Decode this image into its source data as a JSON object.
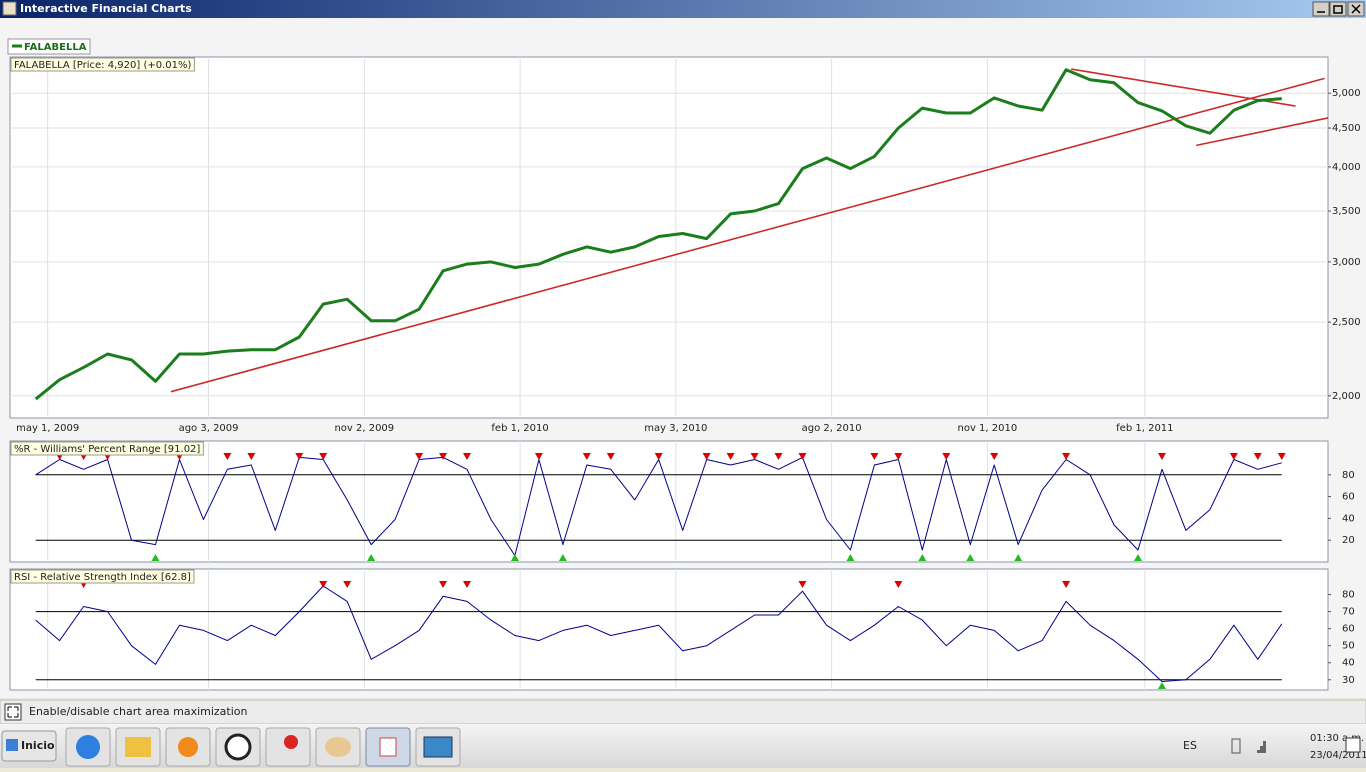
{
  "window": {
    "title": "Interactive Financial Charts"
  },
  "statusbar": {
    "text": "Enable/disable chart area maximization"
  },
  "taskbar": {
    "start": "Inicio",
    "language": "ES",
    "time": "01:30 a.m.",
    "date": "23/04/2011"
  },
  "chart_data": [
    {
      "type": "line",
      "title": "FALABELLA [Price: 4,920] (+0.01%)",
      "log": true,
      "grid": true,
      "x": [
        "2009-04-24",
        "2009-05-08",
        "2009-05-22",
        "2009-06-05",
        "2009-06-19",
        "2009-07-03",
        "2009-07-17",
        "2009-07-31",
        "2009-08-14",
        "2009-08-28",
        "2009-09-11",
        "2009-09-25",
        "2009-10-09",
        "2009-10-23",
        "2009-11-06",
        "2009-11-20",
        "2009-12-04",
        "2009-12-18",
        "2010-01-01",
        "2010-01-15",
        "2010-01-29",
        "2010-02-12",
        "2010-02-26",
        "2010-03-12",
        "2010-03-26",
        "2010-04-09",
        "2010-04-23",
        "2010-05-07",
        "2010-05-21",
        "2010-06-04",
        "2010-06-18",
        "2010-07-02",
        "2010-07-16",
        "2010-07-30",
        "2010-08-13",
        "2010-08-27",
        "2010-09-10",
        "2010-09-24",
        "2010-10-08",
        "2010-10-22",
        "2010-11-05",
        "2010-11-19",
        "2010-12-03",
        "2010-12-17",
        "2010-12-31",
        "2011-01-14",
        "2011-01-28",
        "2011-02-11",
        "2011-02-25",
        "2011-03-11",
        "2011-03-25",
        "2011-04-08",
        "2011-04-22"
      ],
      "series": [
        {
          "name": "FALABELLA",
          "color": "#1b7d1b",
          "values": [
            1980,
            2100,
            2180,
            2270,
            2230,
            2090,
            2270,
            2270,
            2290,
            2300,
            2300,
            2390,
            2640,
            2680,
            2510,
            2510,
            2600,
            2920,
            2980,
            3000,
            2950,
            2980,
            3070,
            3140,
            3090,
            3140,
            3240,
            3270,
            3220,
            3470,
            3500,
            3580,
            3980,
            4110,
            3980,
            4130,
            4500,
            4780,
            4710,
            4710,
            4930,
            4810,
            4750,
            5370,
            5210,
            5160,
            4860,
            4740,
            4530,
            4430,
            4750,
            4890,
            4920
          ]
        }
      ],
      "trendlines": [
        {
          "color": "#cc2a2a",
          "x": [
            "2009-07-12",
            "2011-05-17"
          ],
          "values": [
            2025,
            5230
          ]
        },
        {
          "color": "#cc2a2a",
          "x": [
            "2010-12-20",
            "2011-04-30"
          ],
          "values": [
            5380,
            4810
          ]
        },
        {
          "color": "#cc2a2a",
          "x": [
            "2011-03-03",
            "2011-05-19"
          ],
          "values": [
            4270,
            4640
          ]
        }
      ],
      "xlim": [
        "2009-04-09",
        "2011-05-19"
      ],
      "xticks": [
        {
          "value": "2009-05-01",
          "label": "may 1, 2009"
        },
        {
          "value": "2009-08-03",
          "label": "ago 3, 2009"
        },
        {
          "value": "2009-11-02",
          "label": "nov 2, 2009"
        },
        {
          "value": "2010-02-01",
          "label": "feb 1, 2010"
        },
        {
          "value": "2010-05-03",
          "label": "may 3, 2010"
        },
        {
          "value": "2010-08-02",
          "label": "ago 2, 2010"
        },
        {
          "value": "2010-11-01",
          "label": "nov 1, 2010"
        },
        {
          "value": "2011-02-01",
          "label": "feb 1, 2011"
        }
      ],
      "ylim": [
        1870,
        5580
      ],
      "yticks": [
        {
          "value": 2000,
          "label": "2,000"
        },
        {
          "value": 2500,
          "label": "2,500"
        },
        {
          "value": 3000,
          "label": "3,000"
        },
        {
          "value": 3500,
          "label": "3,500"
        },
        {
          "value": 4000,
          "label": "4,000"
        },
        {
          "value": 4500,
          "label": "4,500"
        },
        {
          "value": 5000,
          "label": "5,000"
        }
      ]
    },
    {
      "type": "line",
      "title": "%R - Williams' Percent Range [91.02]",
      "color": "#00008b",
      "values": [
        80,
        94,
        85,
        94,
        20,
        16,
        94,
        39,
        85,
        89,
        29,
        96,
        94,
        57,
        16,
        39,
        94,
        96,
        85,
        39,
        6,
        94,
        16,
        89,
        85,
        57,
        94,
        29,
        94,
        89,
        94,
        85,
        96,
        39,
        11,
        89,
        94,
        11,
        94,
        16,
        89,
        16,
        66,
        94,
        80,
        34,
        11,
        85,
        29,
        48,
        94,
        85,
        91.02
      ],
      "ylim": [
        0,
        111
      ],
      "yticks": [
        20,
        40,
        60,
        80
      ],
      "levels": [
        80,
        20
      ]
    },
    {
      "type": "line",
      "title": "RSI - Relative Strength Index [62.8]",
      "color": "#00008b",
      "values": [
        65,
        53,
        73,
        70,
        50,
        39,
        62,
        59,
        53,
        62,
        56,
        70,
        85,
        76,
        42,
        50,
        59,
        79,
        76,
        65,
        56,
        53,
        59,
        62,
        56,
        59,
        62,
        47,
        50,
        59,
        68,
        68,
        82,
        62,
        53,
        62,
        73,
        65,
        50,
        62,
        59,
        47,
        53,
        76,
        62,
        53,
        42,
        29,
        30,
        42,
        62,
        42,
        62.8
      ],
      "ylim": [
        24,
        95
      ],
      "yticks": [
        30,
        40,
        50,
        60,
        70,
        80
      ],
      "levels": [
        70,
        30
      ]
    }
  ]
}
